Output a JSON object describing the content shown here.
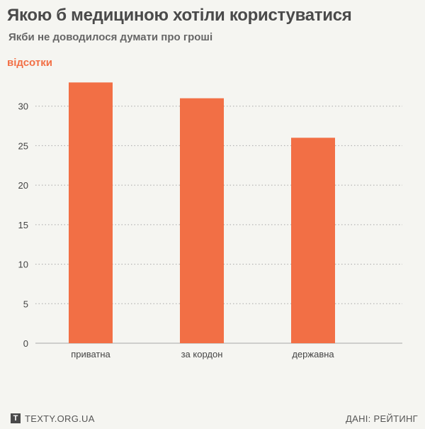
{
  "header": {
    "title": "Якою б медициною хотіли користуватися",
    "subtitle": "Якби не доводилося думати про гроші",
    "unit_label": "відсотки"
  },
  "colors": {
    "bar": "#f26f45",
    "accent_text": "#f26f45",
    "grid": "#a8a8a8",
    "axis_text": "#444444"
  },
  "chart_data": {
    "type": "bar",
    "categories": [
      "приватна",
      "за кордон",
      "державна"
    ],
    "values": [
      33,
      31,
      26
    ],
    "ylim": [
      0,
      35
    ],
    "yticks": [
      0,
      5,
      10,
      15,
      20,
      25,
      30
    ],
    "grid": true,
    "ylabel": "відсотки"
  },
  "footer": {
    "logo_letter": "T",
    "site": "TEXTY.ORG.UA",
    "source": "ДАНІ: РЕЙТИНГ"
  }
}
